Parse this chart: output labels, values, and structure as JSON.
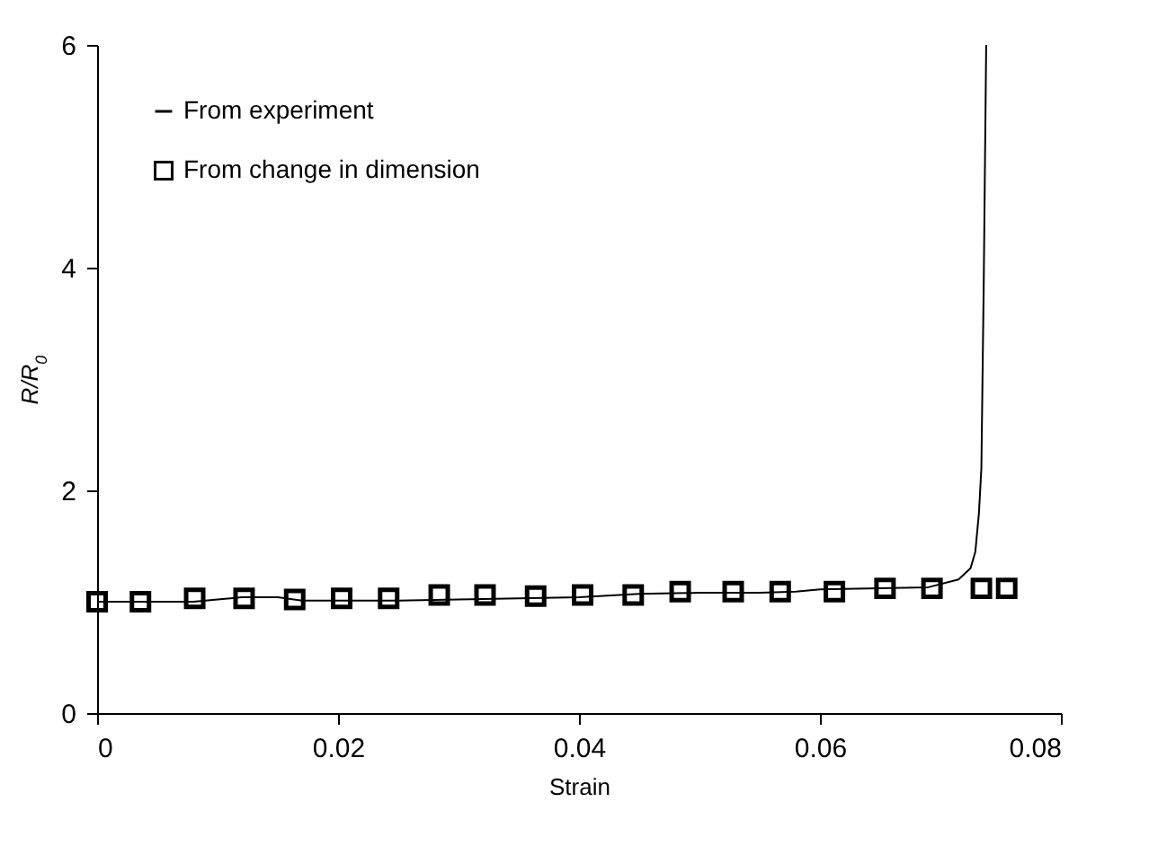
{
  "chart_data": {
    "type": "scatter",
    "xlabel": "Strain",
    "ylabel": "R/R$_{0}$",
    "xlim": [
      0,
      0.08
    ],
    "ylim": [
      0,
      6
    ],
    "xticks": [
      0,
      0.02,
      0.04,
      0.06,
      0.08
    ],
    "yticks": [
      {
        "value": 0,
        "label": "0"
      },
      {
        "value": 2,
        "label": "2"
      },
      {
        "value": 4,
        "label": "4"
      },
      {
        "value": 6,
        "label": "6"
      }
    ],
    "grid": false,
    "legend": "top left",
    "series": [
      {
        "name": "From experiment",
        "type": "line",
        "color": "#000000",
        "marker": "none",
        "x": [
          0,
          0.004,
          0.008,
          0.01,
          0.012,
          0.015,
          0.017,
          0.02,
          0.025,
          0.03,
          0.035,
          0.04,
          0.045,
          0.05,
          0.055,
          0.058,
          0.06,
          0.065,
          0.069,
          0.0715,
          0.0725,
          0.0729,
          0.0732,
          0.0734,
          0.0736,
          0.0738
        ],
        "values": [
          1.0,
          1.0,
          1.0,
          1.02,
          1.04,
          1.04,
          1.01,
          1.01,
          1.01,
          1.02,
          1.03,
          1.04,
          1.07,
          1.08,
          1.08,
          1.09,
          1.11,
          1.12,
          1.13,
          1.2,
          1.3,
          1.45,
          1.8,
          2.2,
          3.9,
          6.0
        ]
      },
      {
        "name": "From change in dimension",
        "color": "#000000",
        "marker": "square",
        "x": [
          0,
          0.0036,
          0.0081,
          0.0122,
          0.0164,
          0.0203,
          0.0242,
          0.0284,
          0.0322,
          0.0364,
          0.0403,
          0.0445,
          0.0484,
          0.0528,
          0.0567,
          0.0612,
          0.0654,
          0.0693,
          0.0734,
          0.0755
        ],
        "values": [
          1.0,
          1.0,
          1.03,
          1.03,
          1.02,
          1.03,
          1.03,
          1.06,
          1.06,
          1.05,
          1.06,
          1.06,
          1.09,
          1.09,
          1.09,
          1.09,
          1.12,
          1.12,
          1.12,
          1.12
        ]
      }
    ]
  }
}
